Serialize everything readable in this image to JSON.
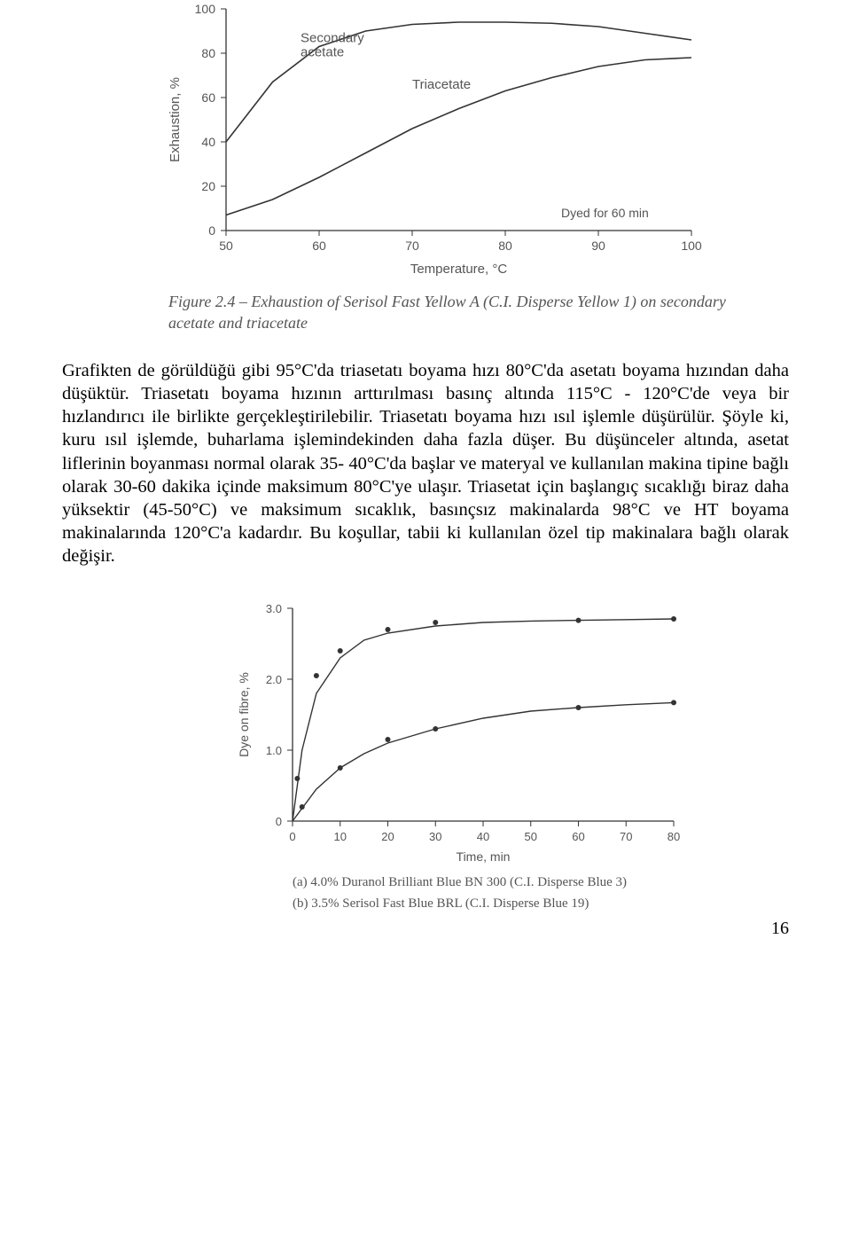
{
  "chart1": {
    "type": "line",
    "xlabel": "Temperature, °C",
    "ylabel": "Exhaustion, %",
    "xlim": [
      50,
      100
    ],
    "ylim": [
      0,
      100
    ],
    "xtick_step": 10,
    "ytick_step": 20,
    "annotation": "Dyed for 60 min",
    "line_color": "#333333",
    "axis_color": "#333333",
    "label_color": "#555555",
    "label_fontsize": 15,
    "tick_fontsize": 14,
    "line_width": 1.6,
    "background_color": "#ffffff",
    "series": [
      {
        "name": "Secondary acetate",
        "label_pos": [
          58,
          85
        ],
        "points": [
          [
            50,
            40
          ],
          [
            55,
            67
          ],
          [
            60,
            83
          ],
          [
            65,
            90
          ],
          [
            70,
            93
          ],
          [
            75,
            94
          ],
          [
            80,
            94
          ],
          [
            85,
            93.5
          ],
          [
            90,
            92
          ],
          [
            95,
            89
          ],
          [
            100,
            86
          ]
        ]
      },
      {
        "name": "Triacetate",
        "label_pos": [
          70,
          64
        ],
        "points": [
          [
            50,
            7
          ],
          [
            55,
            14
          ],
          [
            60,
            24
          ],
          [
            65,
            35
          ],
          [
            70,
            46
          ],
          [
            75,
            55
          ],
          [
            80,
            63
          ],
          [
            85,
            69
          ],
          [
            90,
            74
          ],
          [
            95,
            77
          ],
          [
            100,
            78
          ]
        ]
      }
    ]
  },
  "fig1_caption": "Figure 2.4 – Exhaustion of Serisol Fast Yellow A (C.I. Disperse Yellow 1) on secondary acetate and triacetate",
  "body_paragraph": "Grafikten de görüldüğü gibi 95°C'da triasetatı boyama hızı 80°C'da asetatı boyama hızından daha düşüktür. Triasetatı boyama hızının arttırılması basınç altında 115°C - 120°C'de veya bir hızlandırıcı ile birlikte gerçekleştirilebilir. Triasetatı boyama hızı ısıl işlemle düşürülür. Şöyle ki, kuru ısıl işlemde, buharlama işlemindekinden daha fazla düşer. Bu düşünceler altında, asetat liflerinin boyanması normal olarak 35- 40°C'da başlar ve materyal ve kullanılan makina tipine bağlı olarak 30-60 dakika içinde maksimum 80°C'ye ulaşır. Triasetat için başlangıç sıcaklığı biraz daha yüksektir (45-50°C) ve maksimum sıcaklık, basınçsız makinalarda 98°C ve HT boyama makinalarında 120°C'a kadardır. Bu koşullar, tabii ki kullanılan özel tip makinalara bağlı olarak değişir.",
  "chart2": {
    "type": "scatter-line",
    "xlabel": "Time, min",
    "ylabel": "Dye on fibre, %",
    "xlim": [
      0,
      80
    ],
    "ylim": [
      0,
      3.0
    ],
    "xtick_step": 10,
    "ytick_step": 1.0,
    "line_color": "#333333",
    "marker_color": "#333333",
    "axis_color": "#333333",
    "label_color": "#555555",
    "label_fontsize": 14,
    "tick_fontsize": 13,
    "marker_size": 3,
    "line_width": 1.4,
    "background_color": "#ffffff",
    "series_a": {
      "line": [
        [
          0,
          0
        ],
        [
          2,
          1.0
        ],
        [
          5,
          1.8
        ],
        [
          10,
          2.3
        ],
        [
          15,
          2.55
        ],
        [
          20,
          2.65
        ],
        [
          30,
          2.75
        ],
        [
          40,
          2.8
        ],
        [
          50,
          2.82
        ],
        [
          60,
          2.83
        ],
        [
          70,
          2.84
        ],
        [
          80,
          2.85
        ]
      ],
      "markers": [
        [
          1,
          0.6
        ],
        [
          5,
          2.05
        ],
        [
          10,
          2.4
        ],
        [
          20,
          2.7
        ],
        [
          30,
          2.8
        ],
        [
          60,
          2.83
        ],
        [
          80,
          2.85
        ]
      ]
    },
    "series_b": {
      "line": [
        [
          0,
          0
        ],
        [
          5,
          0.45
        ],
        [
          10,
          0.75
        ],
        [
          15,
          0.95
        ],
        [
          20,
          1.1
        ],
        [
          30,
          1.3
        ],
        [
          40,
          1.45
        ],
        [
          50,
          1.55
        ],
        [
          60,
          1.6
        ],
        [
          70,
          1.64
        ],
        [
          80,
          1.67
        ]
      ],
      "markers": [
        [
          2,
          0.2
        ],
        [
          10,
          0.75
        ],
        [
          20,
          1.15
        ],
        [
          30,
          1.3
        ],
        [
          60,
          1.6
        ],
        [
          80,
          1.67
        ]
      ]
    }
  },
  "chart2_sub_a": "(a) 4.0% Duranol Brilliant Blue BN 300 (C.I. Disperse Blue 3)",
  "chart2_sub_b": "(b) 3.5% Serisol Fast Blue BRL (C.I. Disperse Blue 19)",
  "page_number": "16"
}
